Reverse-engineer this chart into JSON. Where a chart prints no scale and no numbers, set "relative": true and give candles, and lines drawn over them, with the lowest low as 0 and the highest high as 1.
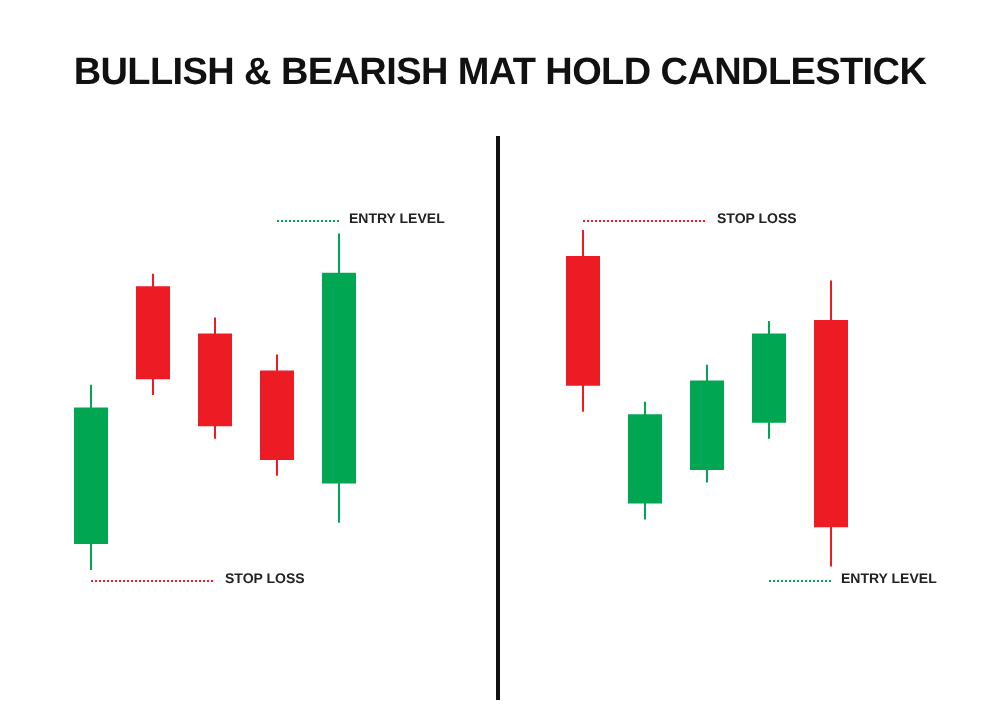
{
  "chart_data": [
    {
      "type": "candlestick",
      "title": "BULLISH & BEARISH MAT HOLD CANDLESTICK",
      "relative": true,
      "categories": [
        null,
        null,
        null,
        null,
        null
      ],
      "ohlc": [
        [
          0.08,
          0.55,
          0,
          0.48
        ],
        [
          0.84,
          0.88,
          0.52,
          0.57
        ],
        [
          0.7,
          0.75,
          0.39,
          0.43
        ],
        [
          0.59,
          0.64,
          0.28,
          0.33
        ],
        [
          0.26,
          1,
          0.14,
          0.88
        ]
      ],
      "colors": [
        "#00a651",
        "#ed1c24",
        "#ed1c24",
        "#ed1c24",
        "#00a651"
      ],
      "ref_lines": [
        {
          "axis": "y",
          "value": 1.04,
          "label": "ENTRY LEVEL",
          "color": "#00a651",
          "line_style": "dotted"
        },
        {
          "axis": "y",
          "value": -0.03,
          "label": "STOP LOSS",
          "color": "#ed1c24",
          "line_style": "dotted"
        }
      ]
    },
    {
      "type": "candlestick",
      "relative": true,
      "categories": [
        null,
        null,
        null,
        null,
        null
      ],
      "ohlc": [
        [
          0.92,
          1,
          0.46,
          0.54
        ],
        [
          0.19,
          0.49,
          0.14,
          0.45
        ],
        [
          0.29,
          0.6,
          0.25,
          0.55
        ],
        [
          0.43,
          0.73,
          0.38,
          0.69
        ],
        [
          0.73,
          0.85,
          0,
          0.12
        ]
      ],
      "colors": [
        "#ed1c24",
        "#00a651",
        "#00a651",
        "#00a651",
        "#ed1c24"
      ],
      "ref_lines": [
        {
          "axis": "y",
          "value": 1.03,
          "label": "STOP LOSS",
          "color": "#ed1c24",
          "line_style": "dotted"
        },
        {
          "axis": "y",
          "value": -0.04,
          "label": "ENTRY LEVEL",
          "color": "#00a651",
          "line_style": "dotted"
        }
      ]
    }
  ]
}
